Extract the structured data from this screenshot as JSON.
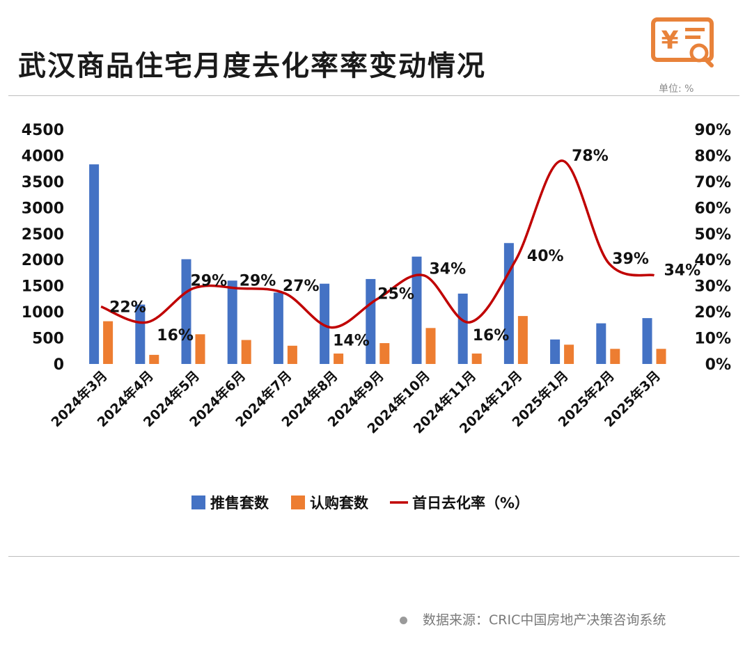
{
  "header": {
    "title": "武汉商品住宅月度去化率率变动情况",
    "unit_label": "单位: %"
  },
  "logo": {
    "icon": "yen-receipt-search-icon",
    "color": "#e8823a"
  },
  "source": {
    "text": "数据来源：CRIC中国房地产决策咨询系统"
  },
  "colors": {
    "supply": "#4472c4",
    "subscription": "#ed7d31",
    "rate": "#c00000"
  },
  "chart_data": {
    "type": "bar",
    "categories": [
      "2024年3月",
      "2024年4月",
      "2024年5月",
      "2024年6月",
      "2024年7月",
      "2024年8月",
      "2024年9月",
      "2024年10月",
      "2024年11月",
      "2024年12月",
      "2025年1月",
      "2025年2月",
      "2025年3月"
    ],
    "series": [
      {
        "name": "推售套数",
        "type": "bar",
        "axis": "left",
        "values": [
          3830,
          1140,
          2010,
          1600,
          1370,
          1540,
          1630,
          2060,
          1350,
          2320,
          470,
          780,
          880
        ]
      },
      {
        "name": "认购套数",
        "type": "bar",
        "axis": "left",
        "values": [
          820,
          175,
          570,
          460,
          350,
          200,
          400,
          690,
          200,
          920,
          370,
          290,
          290
        ]
      },
      {
        "name": "首日去化率（%）",
        "type": "line",
        "axis": "right",
        "values": [
          22,
          16,
          29,
          29,
          27,
          14,
          25,
          34,
          16,
          40,
          78,
          39,
          34
        ],
        "labels": [
          "22%",
          "16%",
          "29%",
          "29%",
          "27%",
          "14%",
          "25%",
          "34%",
          "16%",
          "40%",
          "78%",
          "39%",
          "34%"
        ]
      }
    ],
    "y_left": {
      "ticks": [
        "4500",
        "4000",
        "3500",
        "3000",
        "2500",
        "2000",
        "1500",
        "1000",
        "500",
        "0"
      ],
      "ylim": [
        0,
        4500
      ]
    },
    "y_right": {
      "ticks": [
        "90%",
        "80%",
        "70%",
        "60%",
        "50%",
        "40%",
        "30%",
        "20%",
        "10%",
        "0%"
      ],
      "ylim": [
        0,
        90
      ]
    },
    "grid": false,
    "legend_position": "bottom-center"
  }
}
